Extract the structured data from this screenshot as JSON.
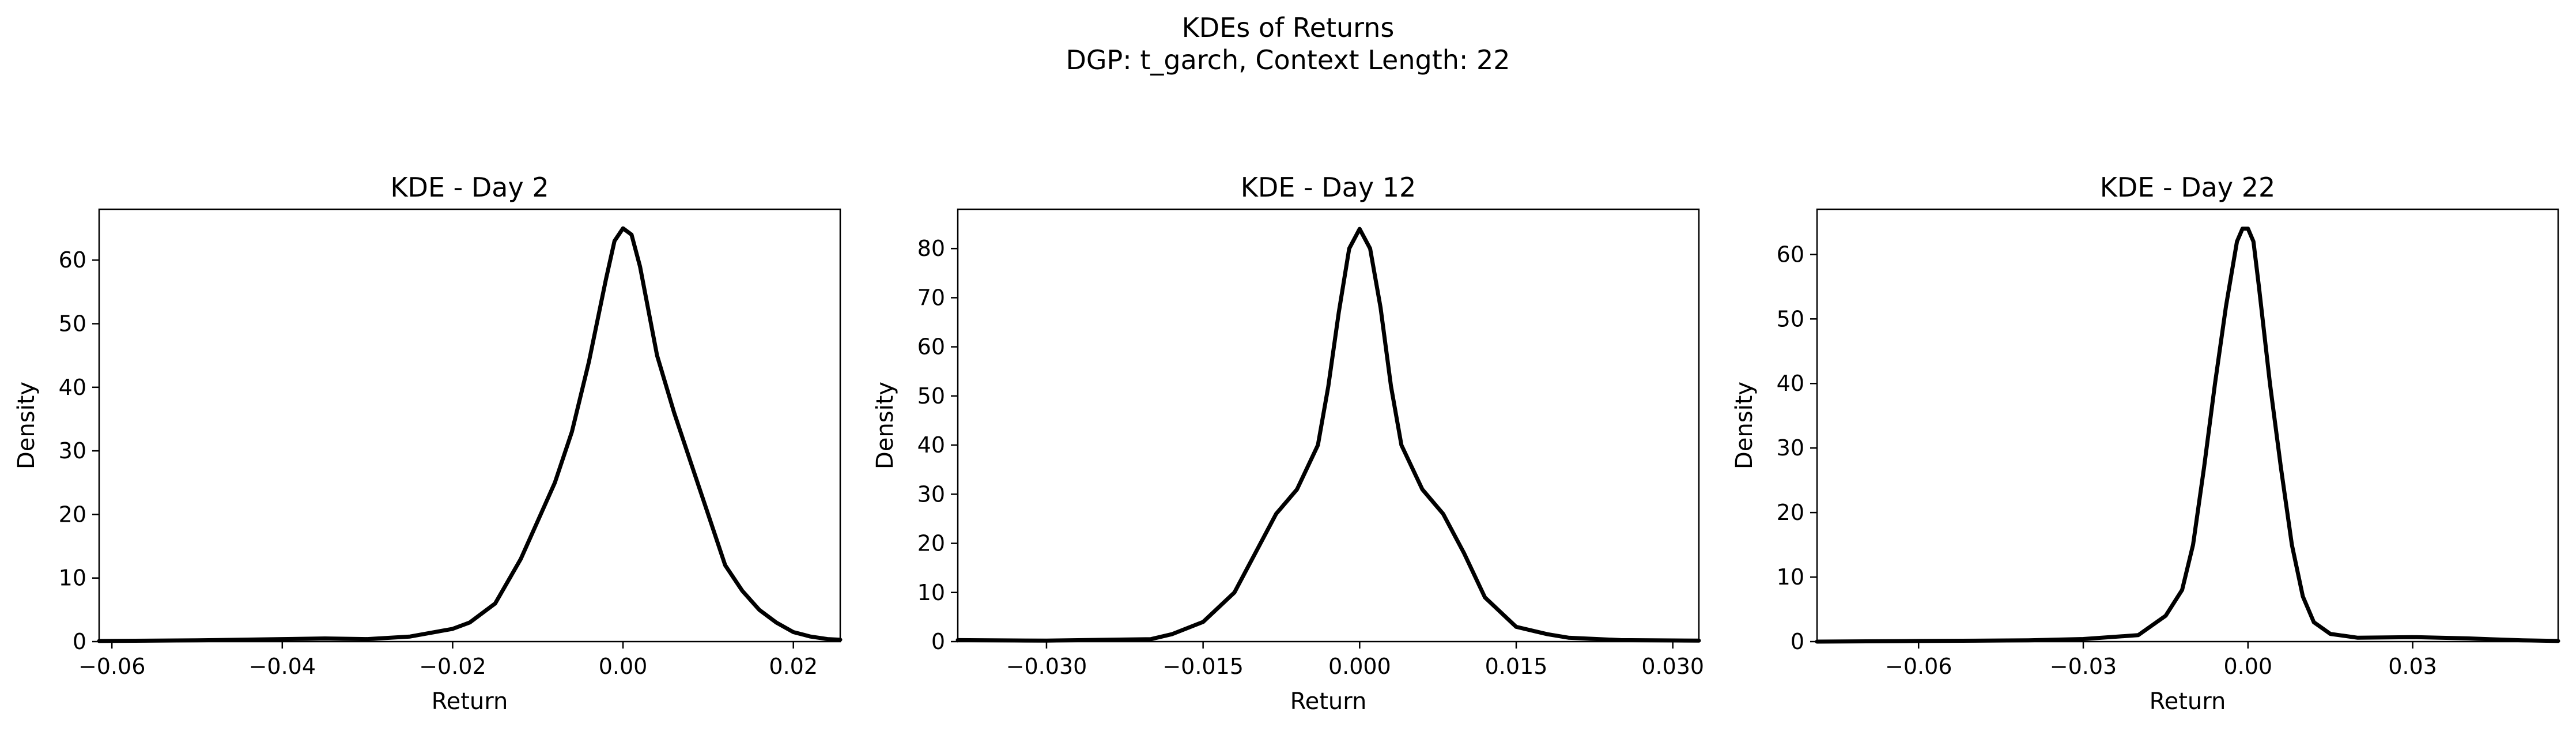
{
  "figure": {
    "title_line1": "KDEs of Returns",
    "title_line2": "DGP: t_garch, Context Length: 22"
  },
  "chart_data": [
    {
      "type": "line",
      "title": "KDE - Day 2",
      "xlabel": "Return",
      "ylabel": "Density",
      "xlim": [
        -0.0615,
        0.0255
      ],
      "ylim": [
        0,
        68
      ],
      "xticks": [
        -0.06,
        -0.04,
        -0.02,
        0.0,
        0.02
      ],
      "xtick_labels": [
        "−0.06",
        "−0.04",
        "−0.02",
        "0.00",
        "0.02"
      ],
      "yticks": [
        0,
        10,
        20,
        30,
        40,
        50,
        60
      ],
      "ytick_labels": [
        "0",
        "10",
        "20",
        "30",
        "40",
        "50",
        "60"
      ],
      "grid": false,
      "series": [
        {
          "color": "#000000",
          "x": [
            -0.0615,
            -0.05,
            -0.04,
            -0.035,
            -0.03,
            -0.025,
            -0.02,
            -0.018,
            -0.015,
            -0.012,
            -0.01,
            -0.008,
            -0.006,
            -0.004,
            -0.002,
            -0.001,
            0.0,
            0.001,
            0.002,
            0.004,
            0.006,
            0.008,
            0.01,
            0.012,
            0.014,
            0.016,
            0.018,
            0.02,
            0.022,
            0.024,
            0.0255
          ],
          "y": [
            0.1,
            0.2,
            0.4,
            0.5,
            0.4,
            0.8,
            2.0,
            3.0,
            6.0,
            13.0,
            19.0,
            25.0,
            33.0,
            44.0,
            57.0,
            63.0,
            65.0,
            64.0,
            59.0,
            45.0,
            36.0,
            28.0,
            20.0,
            12.0,
            8.0,
            5.0,
            3.0,
            1.5,
            0.8,
            0.4,
            0.3
          ]
        }
      ]
    },
    {
      "type": "line",
      "title": "KDE - Day 12",
      "xlabel": "Return",
      "ylabel": "Density",
      "xlim": [
        -0.0385,
        0.0325
      ],
      "ylim": [
        0,
        88
      ],
      "xticks": [
        -0.03,
        -0.015,
        0.0,
        0.015,
        0.03
      ],
      "xtick_labels": [
        "−0.030",
        "−0.015",
        "0.000",
        "0.015",
        "0.030"
      ],
      "yticks": [
        0,
        10,
        20,
        30,
        40,
        50,
        60,
        70,
        80
      ],
      "ytick_labels": [
        "0",
        "10",
        "20",
        "30",
        "40",
        "50",
        "60",
        "70",
        "80"
      ],
      "grid": false,
      "series": [
        {
          "color": "#000000",
          "x": [
            -0.0385,
            -0.03,
            -0.02,
            -0.018,
            -0.015,
            -0.012,
            -0.01,
            -0.008,
            -0.006,
            -0.004,
            -0.003,
            -0.002,
            -0.001,
            0.0,
            0.001,
            0.002,
            0.003,
            0.004,
            0.006,
            0.008,
            0.01,
            0.012,
            0.015,
            0.018,
            0.02,
            0.025,
            0.0325
          ],
          "y": [
            0.3,
            0.2,
            0.5,
            1.5,
            4.0,
            10.0,
            18.0,
            26.0,
            31.0,
            40.0,
            52.0,
            67.0,
            80.0,
            84.0,
            80.0,
            68.0,
            52.0,
            40.0,
            31.0,
            26.0,
            18.0,
            9.0,
            3.0,
            1.5,
            0.8,
            0.3,
            0.2
          ]
        }
      ]
    },
    {
      "type": "line",
      "title": "KDE - Day 22",
      "xlabel": "Return",
      "ylabel": "Density",
      "xlim": [
        -0.0785,
        0.0565
      ],
      "ylim": [
        0,
        67
      ],
      "xticks": [
        -0.06,
        -0.03,
        0.0,
        0.03
      ],
      "xtick_labels": [
        "−0.06",
        "−0.03",
        "0.00",
        "0.03"
      ],
      "yticks": [
        0,
        10,
        20,
        30,
        40,
        50,
        60
      ],
      "ytick_labels": [
        "0",
        "10",
        "20",
        "30",
        "40",
        "50",
        "60"
      ],
      "grid": false,
      "series": [
        {
          "color": "#000000",
          "x": [
            -0.0785,
            -0.06,
            -0.04,
            -0.03,
            -0.02,
            -0.015,
            -0.012,
            -0.01,
            -0.008,
            -0.006,
            -0.004,
            -0.002,
            -0.001,
            0.0,
            0.001,
            0.002,
            0.004,
            0.006,
            0.008,
            0.01,
            0.012,
            0.015,
            0.02,
            0.03,
            0.04,
            0.05,
            0.0565
          ],
          "y": [
            0.0,
            0.1,
            0.2,
            0.4,
            1.0,
            4.0,
            8.0,
            15.0,
            27.0,
            40.0,
            52.0,
            62.0,
            64.0,
            64.0,
            62.0,
            55.0,
            40.0,
            27.0,
            15.0,
            7.0,
            3.0,
            1.2,
            0.6,
            0.7,
            0.5,
            0.2,
            0.1
          ]
        }
      ]
    }
  ]
}
